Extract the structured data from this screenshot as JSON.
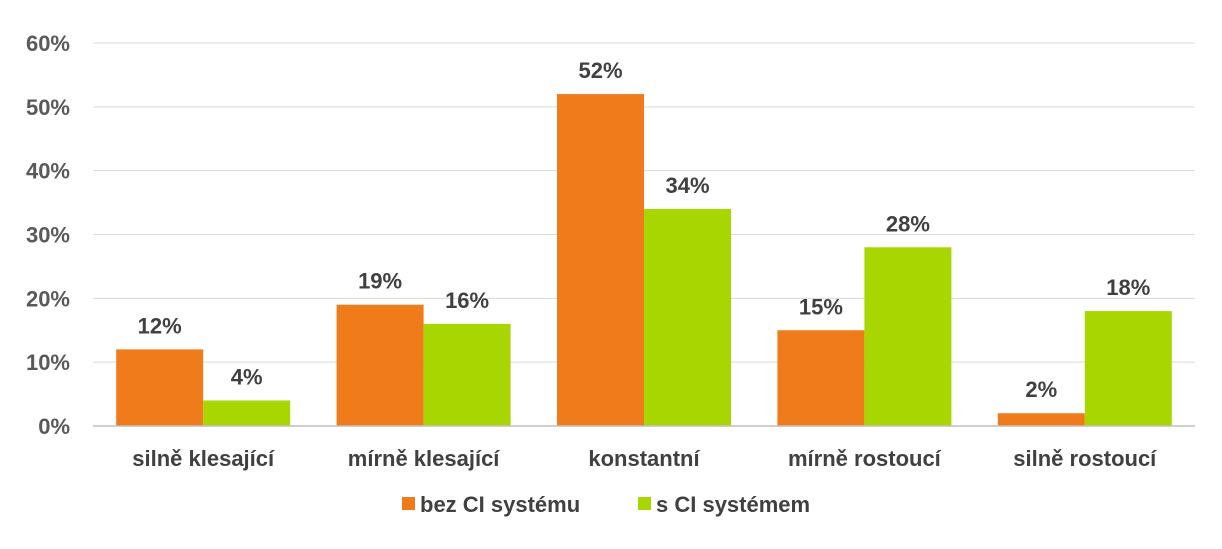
{
  "chart_data": {
    "type": "bar",
    "categories": [
      "silně klesající",
      "mírně klesající",
      "konstantní",
      "mírně rostoucí",
      "silně rostoucí"
    ],
    "series": [
      {
        "name": "bez CI systému",
        "values": [
          12,
          19,
          52,
          15,
          2
        ],
        "labels": [
          "12%",
          "19%",
          "52%",
          "15%",
          "2%"
        ],
        "color": "#f07b1b"
      },
      {
        "name": "s CI systémem",
        "values": [
          4,
          16,
          34,
          28,
          18
        ],
        "labels": [
          "4%",
          "16%",
          "34%",
          "28%",
          "18%"
        ],
        "color": "#a8d600"
      }
    ],
    "ylim": [
      0,
      60
    ],
    "yticks": [
      "0%",
      "10%",
      "20%",
      "30%",
      "40%",
      "50%",
      "60%"
    ],
    "grid": true,
    "legend": "bottom-center"
  }
}
